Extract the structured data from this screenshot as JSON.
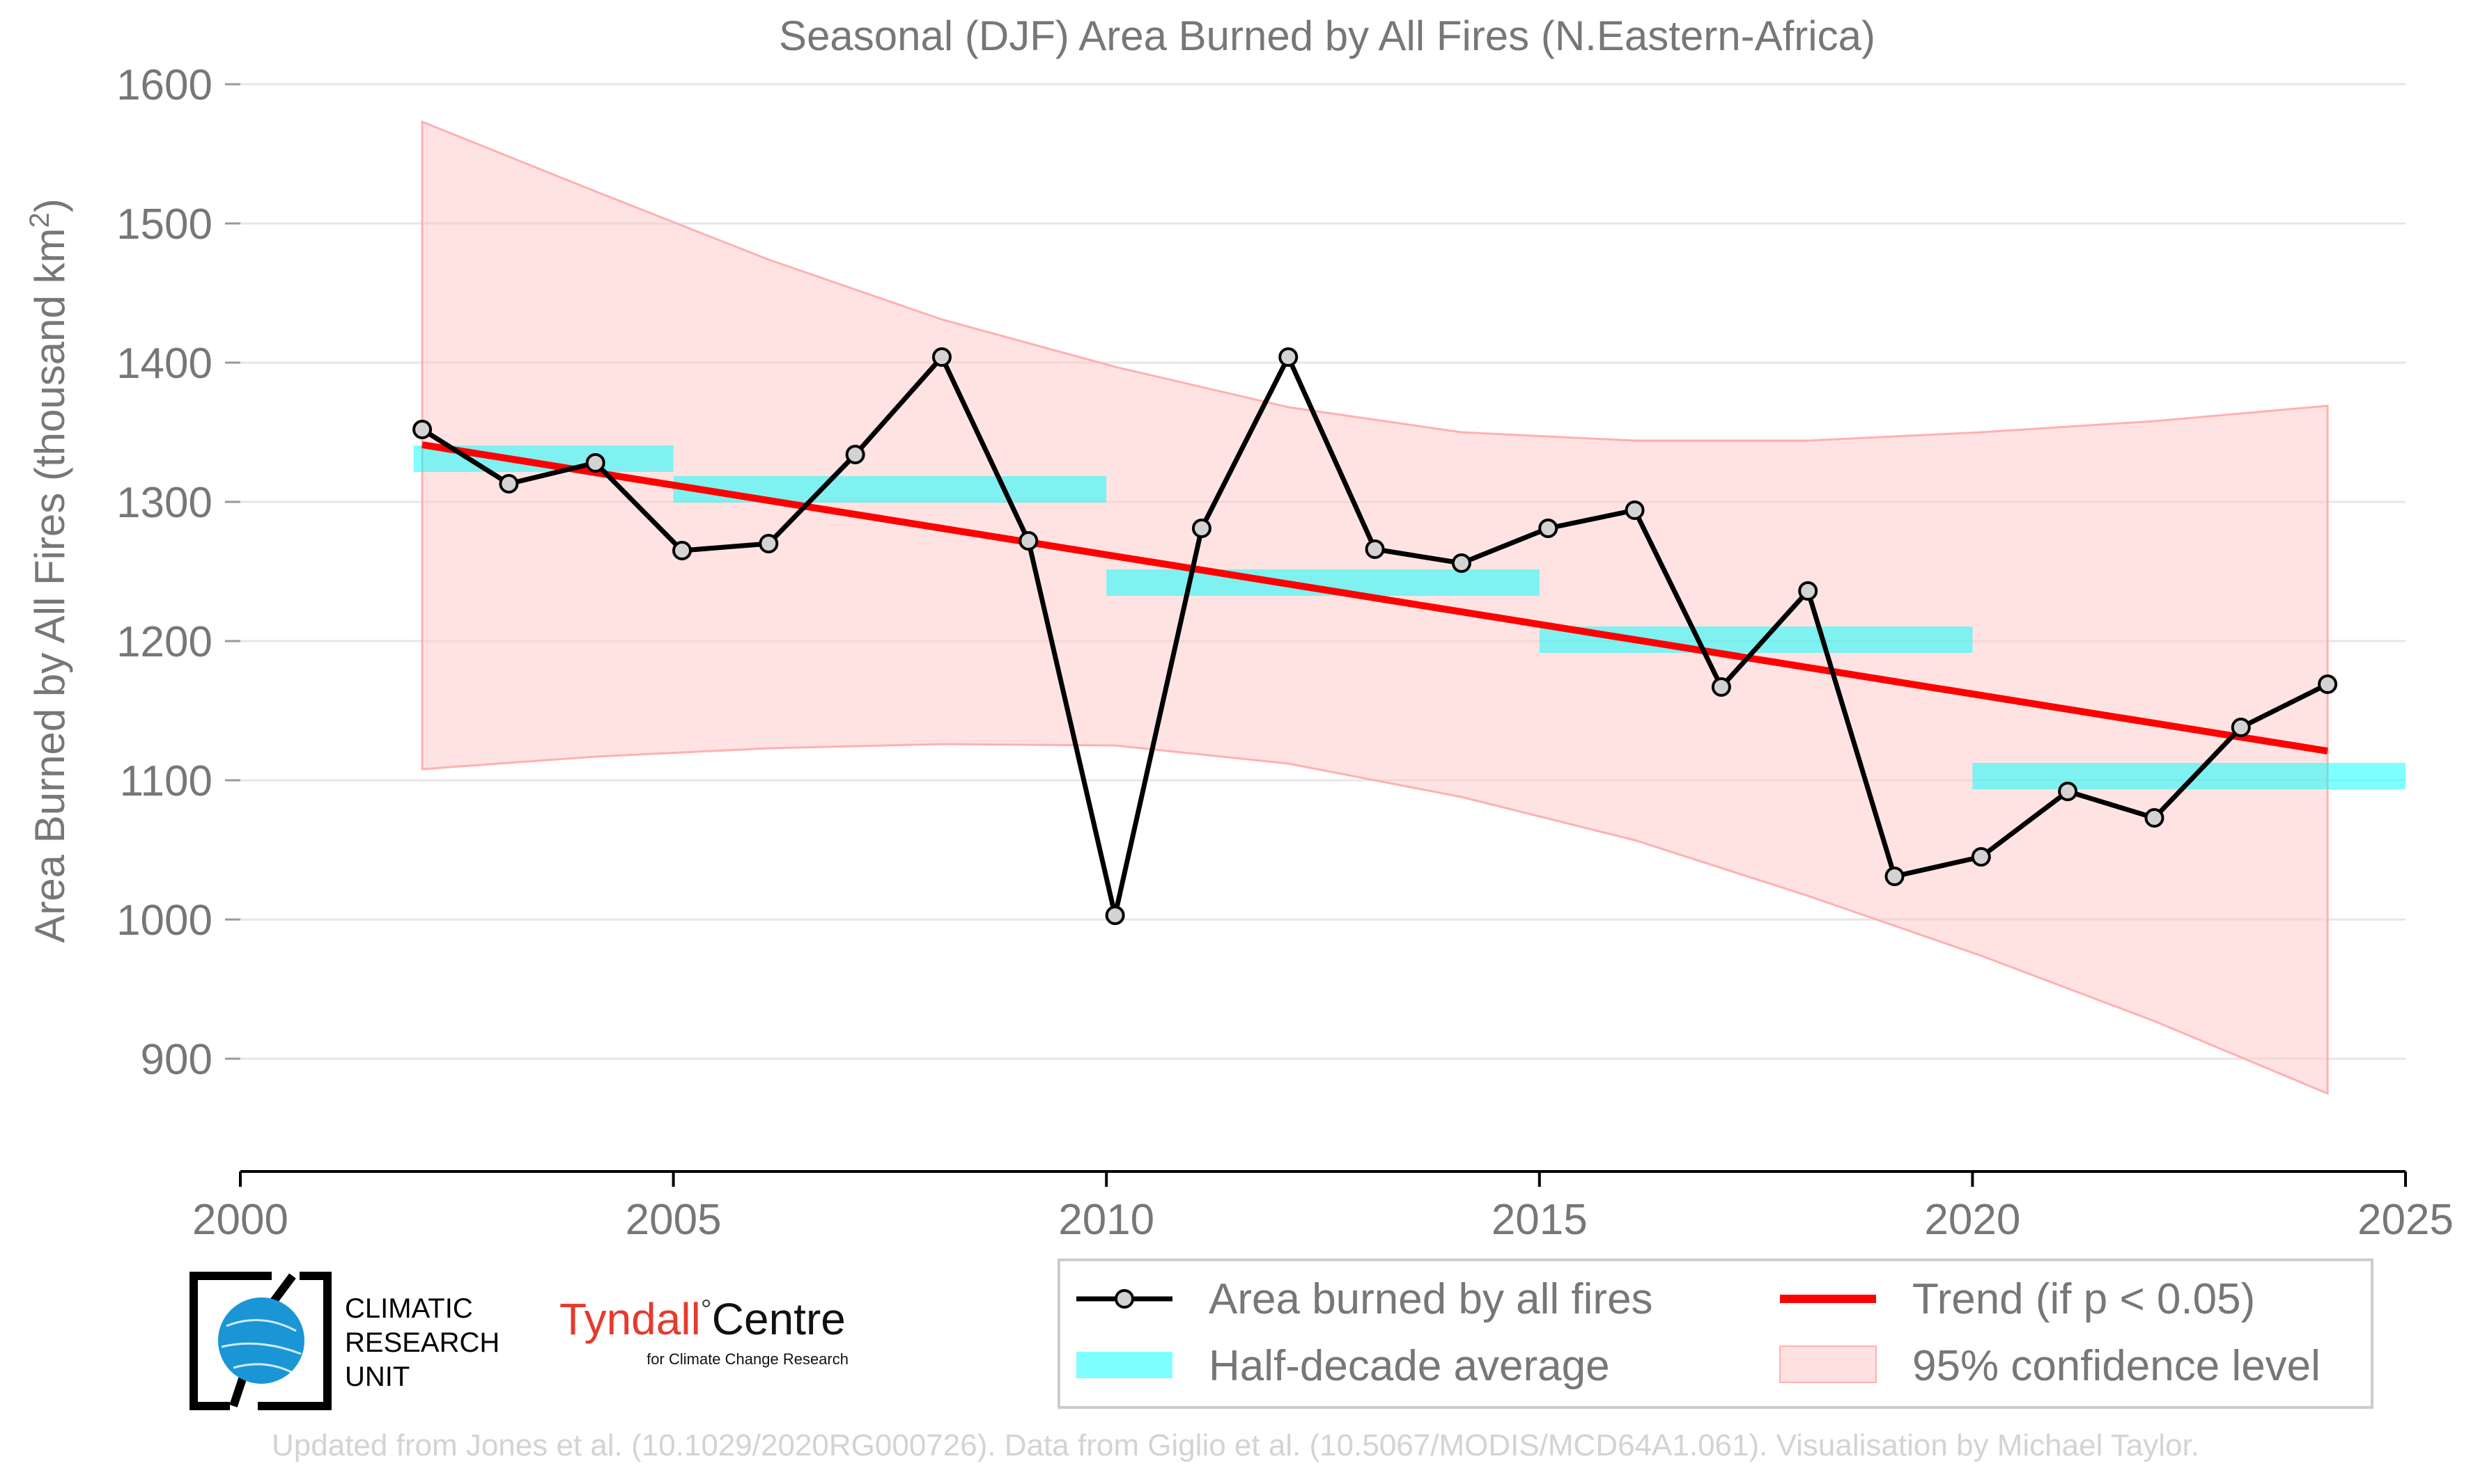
{
  "chart_data": {
    "type": "line",
    "title": "Seasonal (DJF) Area Burned by All Fires (N.Eastern-Africa)",
    "ylabel_prefix": "Area Burned by All Fires (thousand km",
    "ylabel_sup": "2",
    "ylabel_suffix": ")",
    "xlabel": "",
    "xlim": [
      2000,
      2025
    ],
    "ylim": [
      825,
      1610
    ],
    "xticks": [
      2000,
      2005,
      2010,
      2015,
      2020,
      2025
    ],
    "yticks": [
      900,
      1000,
      1100,
      1200,
      1300,
      1400,
      1500,
      1600
    ],
    "grid": true,
    "series": [
      {
        "name": "Area burned by all fires",
        "color": "#000000",
        "marker_fill": "#d3d3d3",
        "x": [
          2002.1,
          2003.1,
          2004.1,
          2005.1,
          2006.1,
          2007.1,
          2008.1,
          2009.1,
          2010.1,
          2011.1,
          2012.1,
          2013.1,
          2014.1,
          2015.1,
          2016.1,
          2017.1,
          2018.1,
          2019.1,
          2020.1,
          2021.1,
          2022.1,
          2023.1,
          2024.1
        ],
        "y": [
          1352,
          1313,
          1328,
          1265,
          1270,
          1334,
          1404,
          1272,
          1003,
          1281,
          1404,
          1266,
          1256,
          1281,
          1294,
          1167,
          1236,
          1031,
          1045,
          1092,
          1073,
          1138,
          1169
        ]
      }
    ],
    "half_decade_average": {
      "name": "Half-decade average",
      "color": "#00ffff",
      "segments": [
        {
          "x0": 2002,
          "x1": 2005,
          "y": 1331
        },
        {
          "x0": 2005,
          "x1": 2010,
          "y": 1309
        },
        {
          "x0": 2010,
          "x1": 2015,
          "y": 1242
        },
        {
          "x0": 2015,
          "x1": 2020,
          "y": 1201
        },
        {
          "x0": 2020,
          "x1": 2025,
          "y": 1103
        }
      ]
    },
    "trend": {
      "name": "Trend (if p < 0.05)",
      "color": "#ff0000",
      "x": [
        2002.1,
        2024.1
      ],
      "y": [
        1341,
        1121
      ]
    },
    "confidence_band": {
      "name": "95% confidence level",
      "color": "#ffc8c8",
      "x": [
        2002.1,
        2004.1,
        2006.1,
        2008.1,
        2010.1,
        2012.1,
        2014.1,
        2016.1,
        2018.1,
        2020.1,
        2022.1,
        2024.1
      ],
      "upper": [
        1573,
        1523,
        1474,
        1431,
        1397,
        1368,
        1350,
        1344,
        1344,
        1350,
        1358,
        1369
      ],
      "lower": [
        1108,
        1117,
        1123,
        1126,
        1125,
        1112,
        1088,
        1057,
        1017,
        974,
        927,
        875
      ]
    },
    "legend": {
      "placement": "bottom-right",
      "items": [
        "Area burned by all fires",
        "Trend (if p < 0.05)",
        "Half-decade average",
        "95% confidence level"
      ]
    }
  },
  "logos": {
    "cru_line1": "CLIMATIC",
    "cru_line2": "RESEARCH",
    "cru_line3": "UNIT",
    "tyndall_name": "Tyndall",
    "tyndall_degree": "°",
    "tyndall_centre": "Centre",
    "tyndall_sub": "for Climate Change Research"
  },
  "credit": "Updated from Jones et al. (10.1029/2020RG000726). Data from Giglio et al. (10.5067/MODIS/MCD64A1.061). Visualisation by Michael Taylor."
}
